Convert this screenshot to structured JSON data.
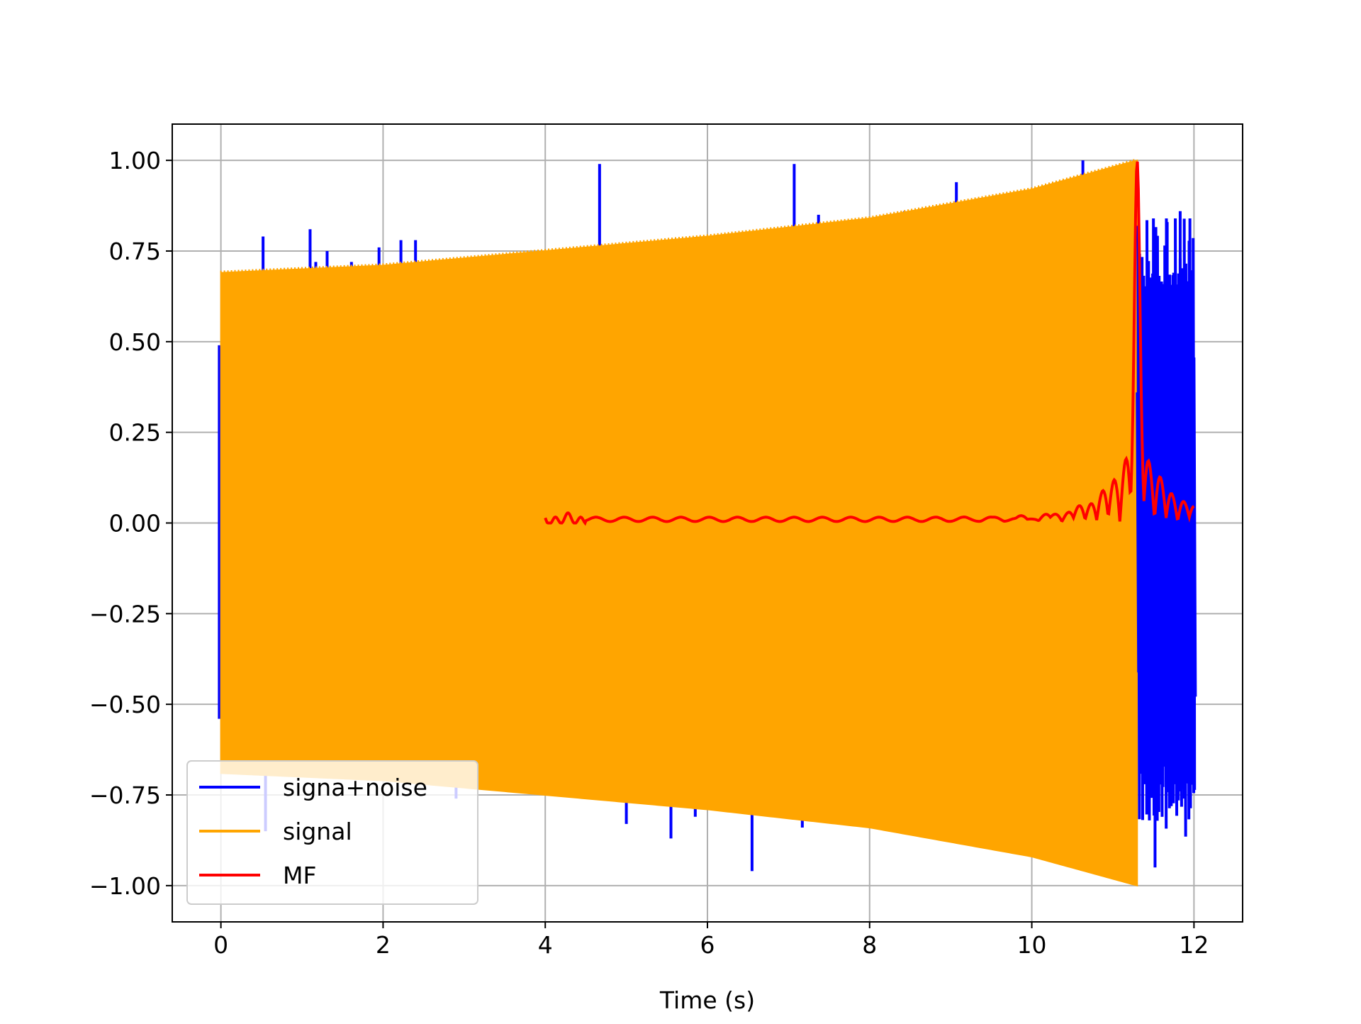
{
  "chart_data": {
    "type": "line",
    "title": "",
    "xlabel": "Time (s)",
    "ylabel": "",
    "xlim": [
      -0.6,
      12.6
    ],
    "ylim": [
      -1.1,
      1.1
    ],
    "grid": true,
    "legend_position": "lower-left",
    "x_ticks": [
      0,
      2,
      4,
      6,
      8,
      10,
      12
    ],
    "x_tick_labels": [
      "0",
      "2",
      "4",
      "6",
      "8",
      "10",
      "12"
    ],
    "y_ticks": [
      1.0,
      0.75,
      0.5,
      0.25,
      0.0,
      -0.25,
      -0.5,
      -0.75,
      -1.0
    ],
    "y_tick_labels": [
      "1.00",
      "0.75",
      "0.50",
      "0.25",
      "0.00",
      "−0.25",
      "−0.50",
      "−0.75",
      "−1.00"
    ],
    "series": [
      {
        "name": "signa+noise",
        "color": "#0000ff",
        "description": "signal plus impulsive noise spikes; after the chirp ends (~11.3 s) noise-only oscillation",
        "spikes": [
          {
            "x": -0.02,
            "y": 0.49
          },
          {
            "x": -0.02,
            "y": -0.54
          },
          {
            "x": 0.52,
            "y": 0.79
          },
          {
            "x": 0.55,
            "y": -0.85
          },
          {
            "x": 1.1,
            "y": 0.81
          },
          {
            "x": 1.17,
            "y": 0.72
          },
          {
            "x": 1.31,
            "y": 0.75
          },
          {
            "x": 1.61,
            "y": 0.72
          },
          {
            "x": 1.95,
            "y": 0.76
          },
          {
            "x": 2.22,
            "y": 0.78
          },
          {
            "x": 2.4,
            "y": 0.78
          },
          {
            "x": 2.9,
            "y": -0.76
          },
          {
            "x": 4.67,
            "y": 0.99
          },
          {
            "x": 4.97,
            "y": 0.77
          },
          {
            "x": 5.05,
            "y": 0.77
          },
          {
            "x": 5.0,
            "y": -0.83
          },
          {
            "x": 5.55,
            "y": -0.87
          },
          {
            "x": 5.85,
            "y": -0.81
          },
          {
            "x": 6.55,
            "y": -0.96
          },
          {
            "x": 7.07,
            "y": 0.99
          },
          {
            "x": 7.17,
            "y": -0.84
          },
          {
            "x": 7.37,
            "y": 0.85
          },
          {
            "x": 8.43,
            "y": 0.86
          },
          {
            "x": 9.07,
            "y": 0.94
          },
          {
            "x": 10.63,
            "y": 1.0
          }
        ],
        "tail": {
          "x_start": 11.3,
          "x_end": 12.0,
          "y_max": 0.84,
          "y_min": -0.95
        }
      },
      {
        "name": "signal",
        "color": "#ffa500",
        "description": "dense chirp fill with amplitude envelope growing until cutoff, then zero",
        "envelope_x": [
          0,
          2,
          4,
          6,
          8,
          10,
          11.3
        ],
        "envelope_y": [
          0.69,
          0.71,
          0.75,
          0.79,
          0.84,
          0.92,
          1.0
        ],
        "cutoff_x": 11.3,
        "after_cutoff_y": 0.0
      },
      {
        "name": "MF",
        "color": "#ff0000",
        "description": "matched filter output from 4 s to 12 s, near zero with a sharp peak at ~11.3 s",
        "x_start": 4.0,
        "x_end": 12.0,
        "peak_x": 11.3,
        "peak_y": 1.0,
        "baseline_y": 0.01
      }
    ]
  }
}
